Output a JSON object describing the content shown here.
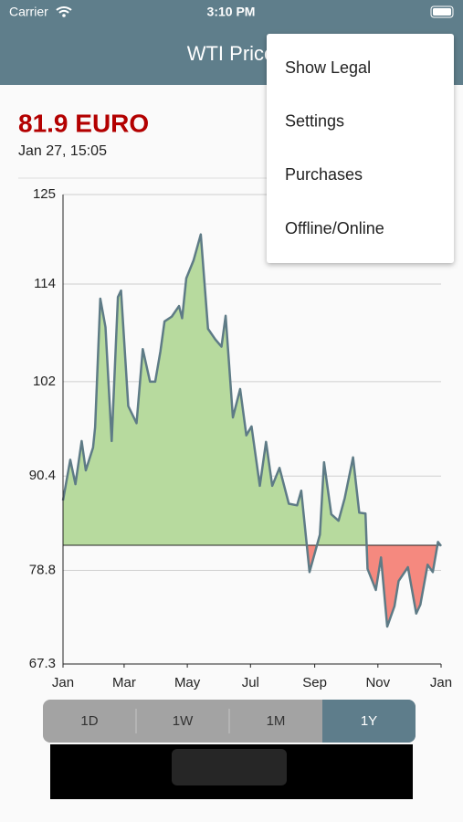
{
  "status_bar": {
    "carrier": "Carrier",
    "time": "3:10 PM"
  },
  "header": {
    "title": "WTI Price"
  },
  "menu": {
    "items": [
      "Show Legal",
      "Settings",
      "Purchases",
      "Offline/Online"
    ]
  },
  "quote": {
    "price": "81.9 EURO",
    "timestamp": "Jan 27, 15:05"
  },
  "chart_data": {
    "type": "area",
    "x": [
      0,
      7,
      12,
      18,
      22,
      29,
      31,
      36,
      41,
      47,
      53,
      56,
      63,
      71,
      77,
      84,
      89,
      94,
      98,
      105,
      112,
      115,
      119,
      126,
      133,
      140,
      147,
      153,
      157,
      164,
      171,
      177,
      182,
      190,
      196,
      202,
      209,
      218,
      226,
      230,
      238,
      248,
      252,
      259,
      266,
      272,
      280,
      286,
      292,
      294,
      302,
      307,
      313,
      320,
      324,
      333,
      341,
      345,
      352,
      357,
      362,
      365
    ],
    "series": [
      {
        "color": "#5e7b86",
        "values": [
          87.4,
          92.4,
          89.4,
          94.7,
          91.1,
          93.9,
          96.4,
          112.2,
          108.7,
          94.7,
          112.4,
          113.2,
          99.0,
          96.9,
          106.0,
          102.0,
          102.0,
          105.7,
          109.4,
          110.0,
          111.3,
          109.8,
          114.7,
          116.9,
          120.1,
          108.5,
          107.2,
          106.3,
          110.1,
          97.6,
          101.1,
          95.4,
          96.5,
          89.2,
          94.6,
          89.2,
          91.4,
          87.0,
          86.8,
          88.6,
          78.6,
          83.2,
          92.1,
          85.7,
          84.9,
          87.7,
          92.7,
          85.9,
          85.8,
          79.0,
          76.4,
          80.4,
          71.9,
          74.4,
          77.5,
          79.2,
          73.5,
          74.6,
          79.5,
          78.6,
          82.3,
          81.8
        ]
      }
    ],
    "baseline": 81.9,
    "above_color": "#b7da9e",
    "below_color": "#f5897f",
    "xlim": [
      0,
      365
    ],
    "xticks": [
      {
        "value": 0,
        "label": "Jan"
      },
      {
        "value": 59,
        "label": "Mar"
      },
      {
        "value": 120,
        "label": "May"
      },
      {
        "value": 181,
        "label": "Jul"
      },
      {
        "value": 243,
        "label": "Sep"
      },
      {
        "value": 304,
        "label": "Nov"
      },
      {
        "value": 365,
        "label": "Jan"
      }
    ],
    "ylim": [
      67.3,
      125
    ],
    "yticks": [
      67.3,
      78.8,
      90.4,
      102,
      114,
      125
    ],
    "grid": true
  },
  "range_selector": {
    "options": [
      "1D",
      "1W",
      "1M",
      "1Y"
    ],
    "selected": "1Y"
  }
}
